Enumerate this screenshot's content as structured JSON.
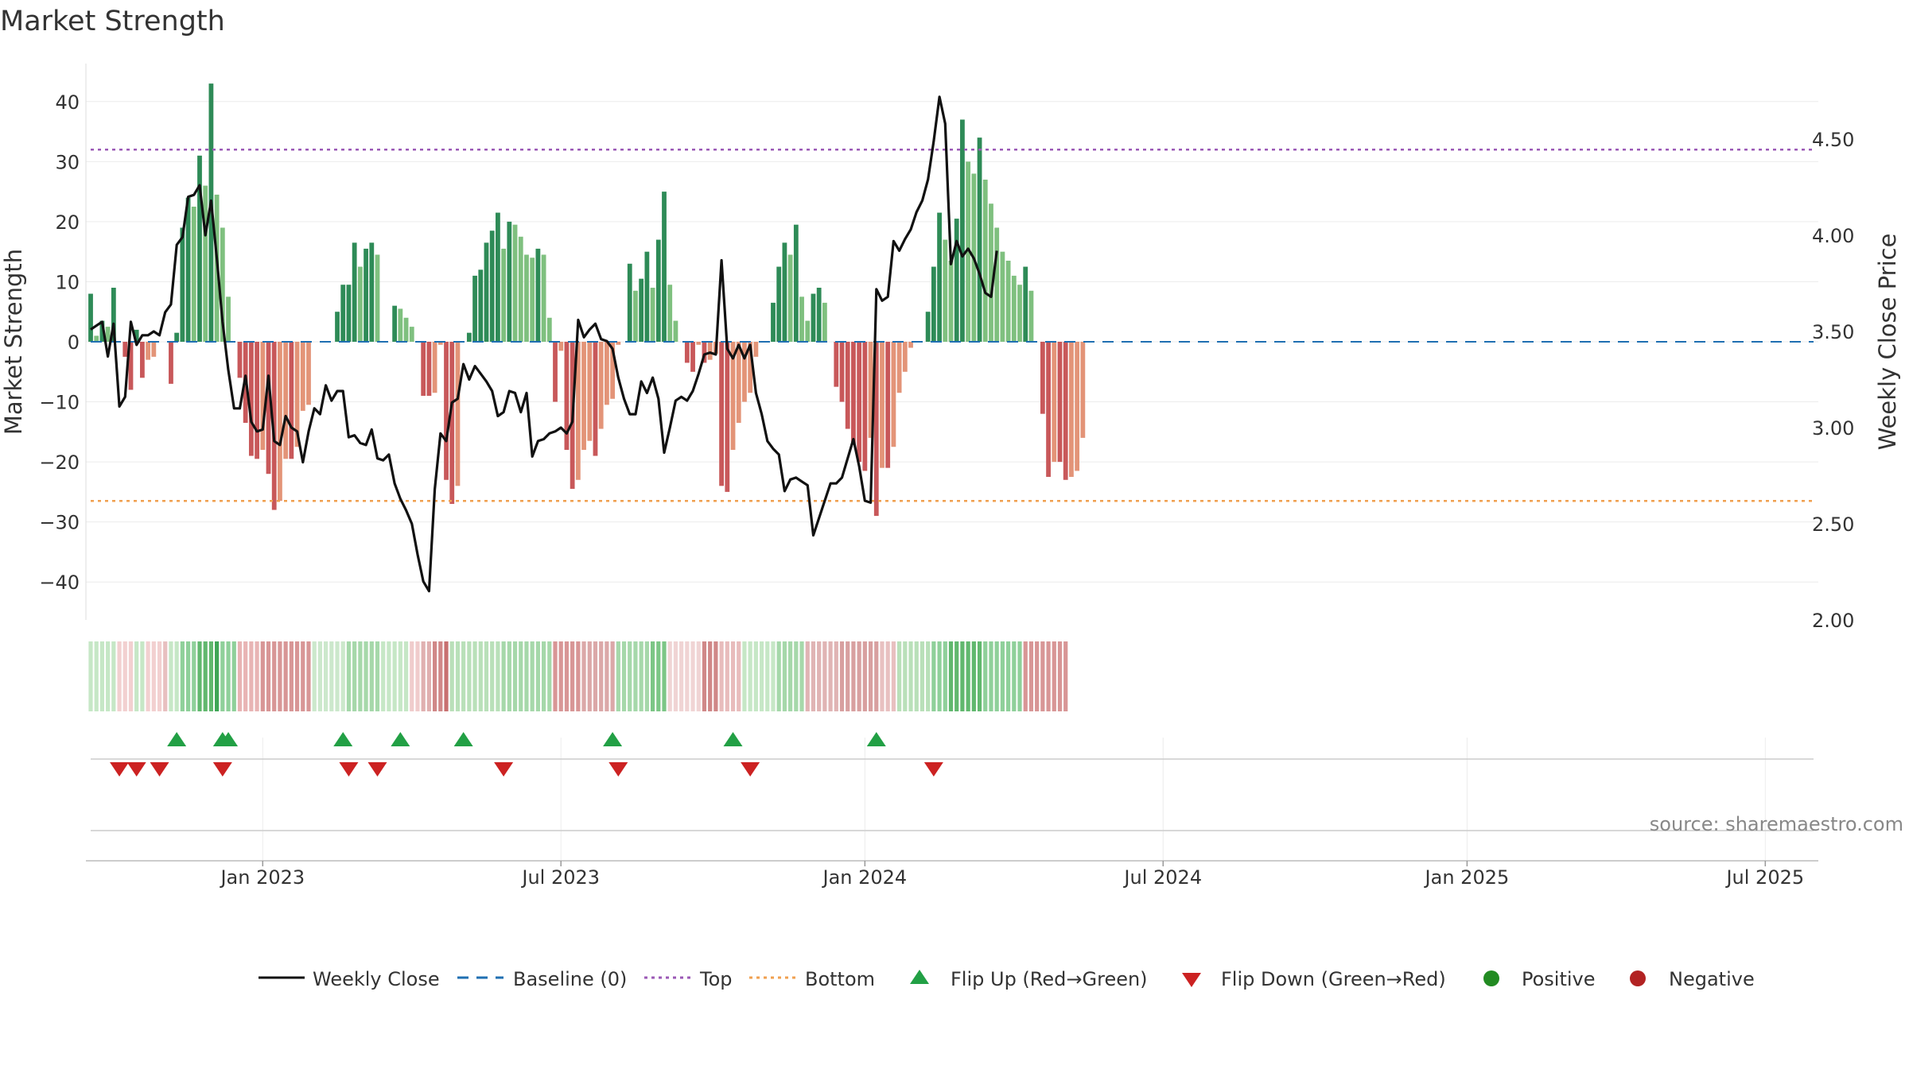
{
  "colors": {
    "pos_dark": "#2e8b57",
    "pos_light": "#7fc07f",
    "neg_dark": "#c8585a",
    "neg_light": "#e39478",
    "price_line": "#111111",
    "baseline": "#1f6fb2",
    "top_line": "#9b59b6",
    "bottom_line": "#f0a050",
    "flip_up": "#22a045",
    "flip_down": "#cc2222",
    "positive_dot": "#228b22",
    "negative_dot": "#b22222"
  },
  "chart_data": {
    "type": "bar",
    "title": "Market Strength",
    "ylabel": "Market Strength",
    "y2label": "Weekly Close Price",
    "ylim": [
      -46,
      46
    ],
    "y2lim": [
      1.96,
      4.82
    ],
    "y_ticks": [
      40,
      30,
      20,
      10,
      0,
      -10,
      -20,
      -30,
      -40
    ],
    "y_tick_labels": [
      "40",
      "30",
      "20",
      "10",
      "0",
      "−10",
      "−20",
      "−30",
      "−40"
    ],
    "y2_ticks": [
      4.5,
      4.0,
      3.5,
      3.0,
      2.5,
      2.0
    ],
    "y2_tick_labels": [
      "4.50",
      "4.00",
      "3.50",
      "3.00",
      "2.50",
      "2.00"
    ],
    "x_ticks": [
      {
        "week": 30,
        "label": "Jan 2023"
      },
      {
        "week": 82,
        "label": "Jul 2023"
      },
      {
        "week": 135,
        "label": "Jan 2024"
      },
      {
        "week": 187,
        "label": "Jul 2024"
      },
      {
        "week": 240,
        "label": "Jan 2025"
      },
      {
        "week": 292,
        "label": "Jul 2025"
      }
    ],
    "top": 32,
    "bottom": -26.5,
    "baseline": 0,
    "start_week": 0,
    "strength": [
      8,
      1,
      3.5,
      2.5,
      9,
      0,
      -2.5,
      -8,
      2,
      -6,
      -3,
      -2.5,
      0,
      0,
      -7,
      1.5,
      19,
      24,
      22.5,
      31,
      26,
      43,
      24.5,
      19,
      7.5,
      0,
      -6,
      -13.5,
      -19,
      -19.5,
      -18,
      -22,
      -28,
      -26.5,
      -19.5,
      -19.5,
      -17.5,
      -11.5,
      -10.5,
      0,
      0,
      0,
      0,
      5,
      9.5,
      9.5,
      16.5,
      12.5,
      15.5,
      16.5,
      14.5,
      0,
      0,
      6,
      5.5,
      4,
      2.5,
      0,
      -9,
      -9,
      -8.5,
      -0.5,
      -23,
      -27,
      -24,
      0,
      1.5,
      11,
      12,
      16.5,
      18.5,
      21.5,
      15.5,
      20,
      19.5,
      17.5,
      14.5,
      14,
      15.5,
      14.5,
      4,
      -10,
      -1.5,
      -18,
      -24.5,
      -23,
      -18,
      -16.5,
      -19,
      -14.5,
      -10.5,
      -9.5,
      -0.5,
      0,
      13,
      8.5,
      10.5,
      15,
      9,
      17,
      25,
      9.5,
      3.5,
      0,
      -3.5,
      -5,
      -0.5,
      -3.5,
      -3,
      -2,
      -24,
      -25,
      -18,
      -13.5,
      -10,
      -8.5,
      -2.5,
      0,
      0,
      6.5,
      12.5,
      16.5,
      14.5,
      19.5,
      7.5,
      3.5,
      8,
      9,
      6.5,
      0,
      -7.5,
      -10,
      -14.5,
      -17,
      -20,
      -21.5,
      -16,
      -29,
      -21,
      -21,
      -17.5,
      -8.5,
      -5,
      -1,
      0,
      0,
      5,
      12.5,
      21.5,
      17,
      13.5,
      20.5,
      37,
      30,
      28,
      34,
      27,
      23,
      19,
      15,
      13.5,
      11,
      9.5,
      12.5,
      8.5,
      0,
      -12,
      -22.5,
      -20,
      -20,
      -23,
      -22.5,
      -21.5,
      -16
    ],
    "price": [
      3.51,
      3.53,
      3.55,
      3.37,
      3.54,
      3.11,
      3.16,
      3.55,
      3.43,
      3.48,
      3.48,
      3.5,
      3.48,
      3.6,
      3.64,
      3.95,
      3.99,
      4.2,
      4.21,
      4.26,
      4.0,
      4.18,
      3.88,
      3.55,
      3.3,
      3.1,
      3.1,
      3.27,
      3.03,
      2.98,
      2.99,
      3.27,
      2.93,
      2.91,
      3.06,
      3.0,
      2.98,
      2.82,
      2.98,
      3.1,
      3.07,
      3.22,
      3.14,
      3.19,
      3.19,
      2.95,
      2.96,
      2.92,
      2.91,
      2.99,
      2.84,
      2.83,
      2.86,
      2.71,
      2.63,
      2.57,
      2.5,
      2.34,
      2.2,
      2.15,
      2.68,
      2.97,
      2.93,
      3.13,
      3.15,
      3.33,
      3.25,
      3.32,
      3.28,
      3.24,
      3.19,
      3.06,
      3.08,
      3.19,
      3.18,
      3.08,
      3.18,
      2.85,
      2.93,
      2.94,
      2.97,
      2.98,
      3.0,
      2.97,
      3.03,
      3.56,
      3.47,
      3.51,
      3.54,
      3.46,
      3.45,
      3.41,
      3.26,
      3.15,
      3.07,
      3.07,
      3.24,
      3.18,
      3.26,
      3.15,
      2.87,
      3.0,
      3.14,
      3.16,
      3.14,
      3.19,
      3.28,
      3.38,
      3.39,
      3.38,
      3.87,
      3.41,
      3.36,
      3.43,
      3.36,
      3.43,
      3.18,
      3.07,
      2.93,
      2.89,
      2.86,
      2.67,
      2.73,
      2.74,
      2.72,
      2.7,
      2.44,
      2.53,
      2.62,
      2.71,
      2.71,
      2.74,
      2.84,
      2.94,
      2.8,
      2.62,
      2.61,
      3.72,
      3.66,
      3.68,
      3.97,
      3.92,
      3.98,
      4.03,
      4.12,
      4.18,
      4.29,
      4.49,
      4.72,
      4.58,
      3.85,
      3.97,
      3.89,
      3.93,
      3.88,
      3.8,
      3.7,
      3.68,
      3.92
    ],
    "heat_strips": [
      {
        "to": 5,
        "color": "#c6e7c6"
      },
      {
        "to": 8,
        "color": "#f2d0d0"
      },
      {
        "to": 10,
        "color": "#c6e7c6"
      },
      {
        "to": 13,
        "color": "#f2d0d0"
      },
      {
        "to": 14,
        "color": "#e8c0c0"
      },
      {
        "to": 16,
        "color": "#c6e7c6"
      },
      {
        "to": 19,
        "color": "#8fd09a"
      },
      {
        "to": 22,
        "color": "#61b86e"
      },
      {
        "to": 23,
        "color": "#3fa656"
      },
      {
        "to": 26,
        "color": "#8fd09a"
      },
      {
        "to": 30,
        "color": "#e8b4b4"
      },
      {
        "to": 39,
        "color": "#d89696"
      },
      {
        "to": 45,
        "color": "#cce8cc"
      },
      {
        "to": 51,
        "color": "#a6d8aa"
      },
      {
        "to": 56,
        "color": "#c6e7c6"
      },
      {
        "to": 58,
        "color": "#f0cccc"
      },
      {
        "to": 60,
        "color": "#e0b0b0"
      },
      {
        "to": 62,
        "color": "#d08888"
      },
      {
        "to": 63,
        "color": "#c87070"
      },
      {
        "to": 72,
        "color": "#b9e0b9"
      },
      {
        "to": 81,
        "color": "#a6d8aa"
      },
      {
        "to": 86,
        "color": "#d89696"
      },
      {
        "to": 92,
        "color": "#dba8a8"
      },
      {
        "to": 98,
        "color": "#a6d8aa"
      },
      {
        "to": 101,
        "color": "#7cc686"
      },
      {
        "to": 107,
        "color": "#f0d4d4"
      },
      {
        "to": 110,
        "color": "#d08888"
      },
      {
        "to": 114,
        "color": "#e8bcbc"
      },
      {
        "to": 120,
        "color": "#c6e7c6"
      },
      {
        "to": 125,
        "color": "#a6d8aa"
      },
      {
        "to": 131,
        "color": "#e0b4b4"
      },
      {
        "to": 138,
        "color": "#d8a0a0"
      },
      {
        "to": 141,
        "color": "#e8c0c0"
      },
      {
        "to": 147,
        "color": "#b9e0b9"
      },
      {
        "to": 150,
        "color": "#8fd09a"
      },
      {
        "to": 156,
        "color": "#61b86e"
      },
      {
        "to": 163,
        "color": "#8fd09a"
      },
      {
        "to": 171,
        "color": "#d89696"
      }
    ],
    "flip_up_weeks": [
      15,
      23,
      24,
      44,
      54,
      65,
      91,
      112,
      137
    ],
    "flip_down_weeks": [
      5,
      8,
      12,
      23,
      45,
      50,
      72,
      92,
      115,
      147
    ],
    "legend": [
      "Weekly Close",
      "Baseline (0)",
      "Top",
      "Bottom",
      "Flip Up (Red→Green)",
      "Flip Down (Green→Red)",
      "Positive",
      "Negative"
    ],
    "source": "source: sharemaestro.com"
  }
}
